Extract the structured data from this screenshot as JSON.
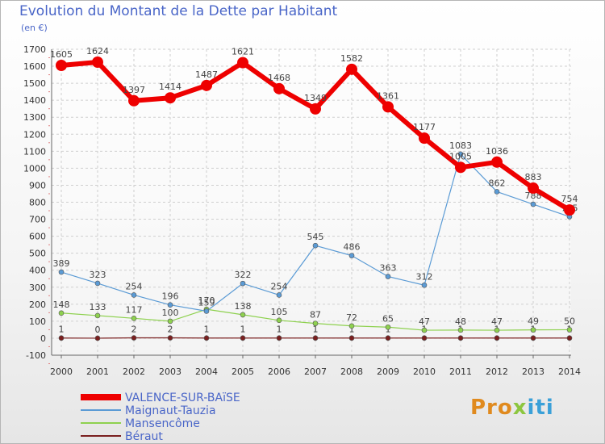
{
  "title": "Evolution du Montant de la Dette par Habitant",
  "subtitle": "(en €)",
  "logo": [
    "Pro",
    "x",
    "iti"
  ],
  "chart_data": {
    "type": "line",
    "x": [
      2000,
      2001,
      2002,
      2003,
      2004,
      2005,
      2006,
      2007,
      2008,
      2009,
      2010,
      2011,
      2012,
      2013,
      2014
    ],
    "ylim": [
      -100,
      1700
    ],
    "yticks": [
      -100,
      0,
      100,
      200,
      300,
      400,
      500,
      600,
      700,
      800,
      900,
      1000,
      1100,
      1200,
      1300,
      1400,
      1500,
      1600,
      1700
    ],
    "grid": true,
    "legend": "bottom-left",
    "series": [
      {
        "name": "VALENCE-SUR-BAïSE",
        "color": "#ee0000",
        "width": 6,
        "values": [
          1605,
          1624,
          1397,
          1414,
          1487,
          1621,
          1468,
          1349,
          1582,
          1361,
          1177,
          1005,
          1036,
          883,
          754
        ]
      },
      {
        "name": "Maignaut-Tauzia",
        "color": "#5b9bd5",
        "width": 1.2,
        "values": [
          389,
          323,
          254,
          196,
          159,
          322,
          254,
          545,
          486,
          363,
          312,
          1083,
          862,
          788,
          715
        ]
      },
      {
        "name": "Mansencôme",
        "color": "#8ed14f",
        "width": 1.2,
        "values": [
          148,
          133,
          117,
          100,
          170,
          138,
          105,
          87,
          72,
          65,
          47,
          48,
          47,
          49,
          50
        ]
      },
      {
        "name": "Béraut",
        "color": "#7a1f1f",
        "width": 1.2,
        "values": [
          1,
          0,
          2,
          2,
          1,
          1,
          1,
          1,
          1,
          1,
          1,
          1,
          1,
          1,
          1
        ]
      }
    ]
  }
}
